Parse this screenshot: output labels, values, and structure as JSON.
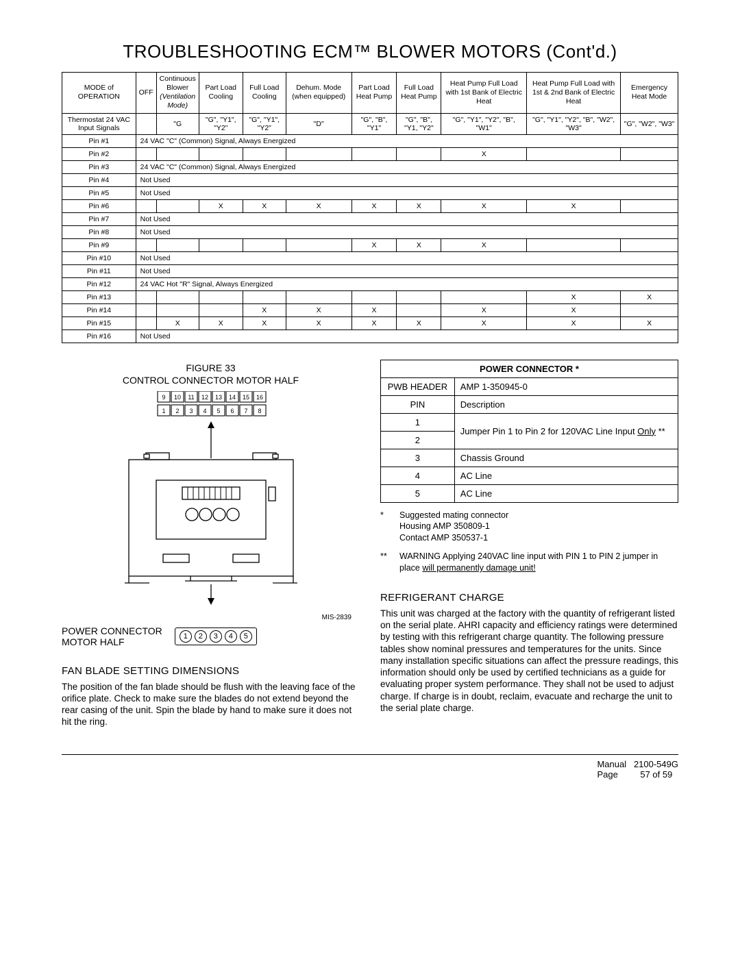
{
  "title": "TROUBLESHOOTING ECM™ BLOWER MOTORS (Cont'd.)",
  "sig_table": {
    "headers": [
      "MODE of OPERATION",
      "OFF",
      "Continuous Blower (Ventilation Mode)",
      "Part Load Cooling",
      "Full Load Cooling",
      "Dehum. Mode (when equipped)",
      "Part Load Heat Pump",
      "Full Load Heat Pump",
      "Heat Pump Full Load with 1st Bank of Electric Heat",
      "Heat Pump Full Load with 1st & 2nd Bank of Electric Heat",
      "Emergency Heat Mode"
    ],
    "thermo_row_label": "Thermostat 24 VAC Input Signals",
    "thermo_row": [
      "",
      "\"G",
      "\"G\", \"Y1\", \"Y2\"",
      "\"G\", \"Y1\", \"Y2\"",
      "\"D\"",
      "\"G\", \"B\", \"Y1\"",
      "\"G\", \"B\", \"Y1, \"Y2\"",
      "\"G\", \"Y1\", \"Y2\", \"B\", \"W1\"",
      "\"G\", \"Y1\", \"Y2\", \"B\", \"W2\", \"W3\"",
      "\"G\", \"W2\", \"W3\""
    ],
    "rows": [
      {
        "label": "Pin #1",
        "span": "24 VAC \"C\" (Common) Signal, Always Energized"
      },
      {
        "label": "Pin #2",
        "cells": [
          "",
          "",
          "",
          "",
          "",
          "",
          "",
          "X",
          "",
          ""
        ]
      },
      {
        "label": "Pin #3",
        "span": "24 VAC \"C\" (Common) Signal, Always Energized"
      },
      {
        "label": "Pin #4",
        "span": "Not Used"
      },
      {
        "label": "Pin #5",
        "span": "Not Used"
      },
      {
        "label": "Pin #6",
        "cells": [
          "",
          "",
          "X",
          "X",
          "X",
          "X",
          "X",
          "X",
          "X",
          ""
        ]
      },
      {
        "label": "Pin #7",
        "span": "Not Used"
      },
      {
        "label": "Pin #8",
        "span": "Not Used"
      },
      {
        "label": "Pin #9",
        "cells": [
          "",
          "",
          "",
          "",
          "",
          "X",
          "X",
          "X",
          "",
          ""
        ]
      },
      {
        "label": "Pin #10",
        "span": "Not Used"
      },
      {
        "label": "Pin #11",
        "span": "Not Used"
      },
      {
        "label": "Pin #12",
        "span": "24 VAC Hot \"R\" Signal, Always Energized"
      },
      {
        "label": "Pin #13",
        "cells": [
          "",
          "",
          "",
          "",
          "",
          "",
          "",
          "",
          "X",
          "X"
        ]
      },
      {
        "label": "Pin #14",
        "cells": [
          "",
          "",
          "",
          "X",
          "X",
          "X",
          "",
          "X",
          "X",
          ""
        ]
      },
      {
        "label": "Pin #15",
        "cells": [
          "",
          "X",
          "X",
          "X",
          "X",
          "X",
          "X",
          "X",
          "X",
          "X"
        ]
      },
      {
        "label": "Pin #16",
        "span": "Not Used"
      }
    ]
  },
  "figure": {
    "num": "FIGURE 33",
    "caption": "CONTROL CONNECTOR MOTOR HALF",
    "top_pins": [
      "9",
      "10",
      "11",
      "12",
      "13",
      "14",
      "15",
      "16"
    ],
    "bot_pins": [
      "1",
      "2",
      "3",
      "4",
      "5",
      "6",
      "7",
      "8"
    ],
    "mis": "MIS-2839",
    "pc_label1": "POWER CONNECTOR",
    "pc_label2": "MOTOR HALF",
    "pc_pins": [
      "1",
      "2",
      "3",
      "4",
      "5"
    ]
  },
  "fan_section": {
    "heading": "FAN BLADE SETTING DIMENSIONS",
    "body": "The position of the fan blade should be flush with the leaving face of the orifice plate.  Check to make sure the blades do not extend beyond the rear casing of the unit. Spin the blade by hand to make sure it does not hit the ring."
  },
  "power_connector": {
    "title": "POWER CONNECTOR  *",
    "h1": "PWB HEADER",
    "h2": "AMP 1-350945-0",
    "c1": "PIN",
    "c2": "Description",
    "rows": [
      {
        "pin": "1",
        "desc": "Jumper Pin 1 to Pin 2 for 120VAC Line Input ",
        "desc_u": "Only",
        "desc_tail": " **",
        "merge": true
      },
      {
        "pin": "2"
      },
      {
        "pin": "3",
        "desc": "Chassis Ground"
      },
      {
        "pin": "4",
        "desc": "AC Line"
      },
      {
        "pin": "5",
        "desc": "AC Line"
      }
    ],
    "note1": "Suggested mating connector\nHousing   AMP 350809-1\nContact   AMP 350537-1",
    "note2a": "WARNING   Applying 240VAC line input with PIN 1 to PIN 2 jumper in place   ",
    "note2b": "will permanently damage unit!"
  },
  "refrig": {
    "heading": "REFRIGERANT CHARGE",
    "body": "This unit was charged at the factory with the quantity of refrigerant listed on the serial plate.  AHRI capacity and efficiency ratings were determined by testing with this refrigerant charge quantity.  The following pressure tables show nominal pressures and temperatures for the units.  Since many installation specific situations can affect the pressure readings, this information should only be used by certified technicians as a guide for evaluating proper system performance.  They shall not be used to adjust charge.  If charge is in doubt, reclaim, evacuate and recharge the unit to the serial plate charge."
  },
  "footer": {
    "manual_l": "Manual",
    "manual_v": "2100-549G",
    "page_l": "Page",
    "page_v": "57 of 59"
  }
}
